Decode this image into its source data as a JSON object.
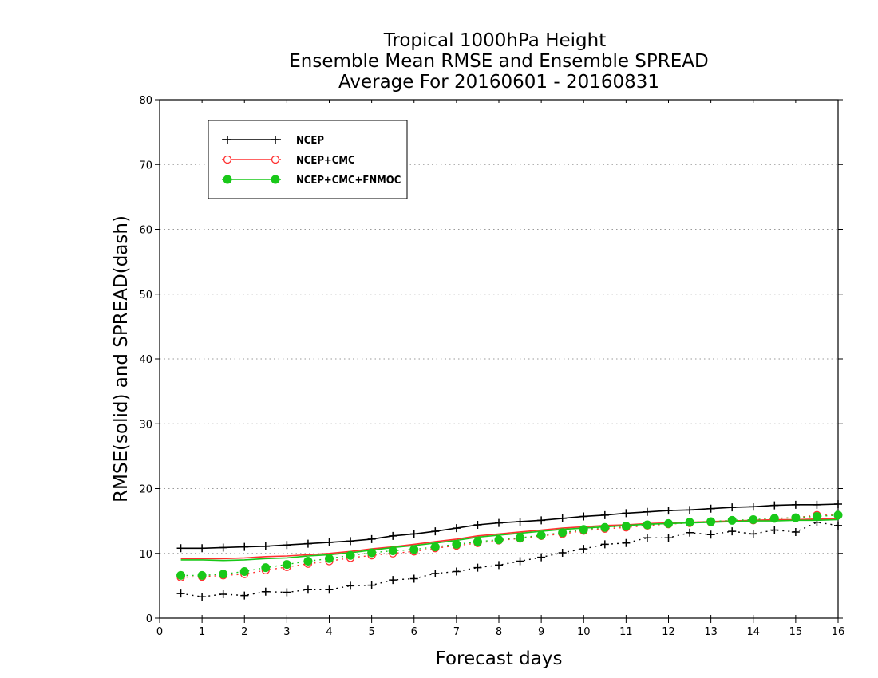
{
  "chart_data": {
    "type": "line",
    "title_lines": [
      "Tropical 1000hPa Height",
      "Ensemble Mean RMSE and Ensemble SPREAD",
      "Average For 20160601 - 20160831"
    ],
    "xlabel": "Forecast days",
    "ylabel": "RMSE(solid) and SPREAD(dash)",
    "xlim": [
      0,
      16
    ],
    "ylim": [
      0,
      80
    ],
    "x_ticks": [
      "0",
      "1",
      "2",
      "3",
      "4",
      "5",
      "6",
      "7",
      "8",
      "9",
      "10",
      "11",
      "12",
      "13",
      "14",
      "15",
      "16"
    ],
    "y_ticks": [
      "0",
      "10",
      "20",
      "30",
      "40",
      "50",
      "60",
      "70",
      "80"
    ],
    "grid": "horizontal dotted",
    "legend_position": "top-left",
    "x": [
      0.5,
      1,
      1.5,
      2,
      2.5,
      3,
      3.5,
      4,
      4.5,
      5,
      5.5,
      6,
      6.5,
      7,
      7.5,
      8,
      8.5,
      9,
      9.5,
      10,
      10.5,
      11,
      11.5,
      12,
      12.5,
      13,
      13.5,
      14,
      14.5,
      15,
      15.5,
      16
    ],
    "series": [
      {
        "name": "NCEP",
        "color": "#000000",
        "marker": "plus",
        "rmse": [
          10.8,
          10.8,
          10.9,
          11.0,
          11.1,
          11.3,
          11.5,
          11.7,
          11.9,
          12.2,
          12.7,
          13.0,
          13.4,
          13.9,
          14.4,
          14.7,
          14.9,
          15.1,
          15.4,
          15.7,
          15.9,
          16.2,
          16.4,
          16.6,
          16.7,
          16.9,
          17.1,
          17.2,
          17.4,
          17.5,
          17.5,
          17.6
        ],
        "spread": [
          3.8,
          3.3,
          3.7,
          3.5,
          4.1,
          4.0,
          4.4,
          4.4,
          5.0,
          5.1,
          5.9,
          6.1,
          6.9,
          7.2,
          7.8,
          8.2,
          8.8,
          9.4,
          10.1,
          10.7,
          11.4,
          11.6,
          12.4,
          12.4,
          13.2,
          12.9,
          13.4,
          13.0,
          13.6,
          13.3,
          14.8,
          14.3
        ]
      },
      {
        "name": "NCEP+CMC",
        "color": "#ff3030",
        "marker": "open-circle",
        "rmse": [
          9.2,
          9.2,
          9.2,
          9.3,
          9.5,
          9.6,
          9.8,
          10.0,
          10.3,
          10.7,
          11.0,
          11.4,
          11.8,
          12.2,
          12.7,
          13.0,
          13.3,
          13.6,
          13.9,
          14.1,
          14.3,
          14.4,
          14.6,
          14.7,
          14.8,
          14.9,
          15.0,
          15.1,
          15.2,
          15.2,
          15.3,
          15.3
        ],
        "spread": [
          6.3,
          6.4,
          6.6,
          6.8,
          7.4,
          7.9,
          8.4,
          8.8,
          9.3,
          9.7,
          10.0,
          10.3,
          10.8,
          11.2,
          11.6,
          12.0,
          12.3,
          12.7,
          13.0,
          13.5,
          13.8,
          14.0,
          14.3,
          14.5,
          14.7,
          14.8,
          15.1,
          15.1,
          15.4,
          15.5,
          15.9,
          15.9
        ]
      },
      {
        "name": "NCEP+CMC+FNMOC",
        "color": "#19c819",
        "marker": "filled-circle",
        "rmse": [
          9.0,
          9.0,
          8.9,
          9.0,
          9.2,
          9.3,
          9.6,
          9.8,
          10.1,
          10.5,
          10.9,
          11.2,
          11.6,
          12.0,
          12.5,
          12.8,
          13.1,
          13.4,
          13.7,
          13.9,
          14.1,
          14.3,
          14.5,
          14.6,
          14.7,
          14.8,
          14.9,
          15.0,
          15.0,
          15.1,
          15.1,
          15.2
        ],
        "spread": [
          6.6,
          6.6,
          6.8,
          7.2,
          7.8,
          8.3,
          8.8,
          9.2,
          9.7,
          10.1,
          10.4,
          10.6,
          11.0,
          11.4,
          11.8,
          12.1,
          12.4,
          12.8,
          13.2,
          13.7,
          14.0,
          14.2,
          14.4,
          14.6,
          14.8,
          14.9,
          15.1,
          15.2,
          15.4,
          15.5,
          15.7,
          15.9
        ]
      }
    ]
  }
}
